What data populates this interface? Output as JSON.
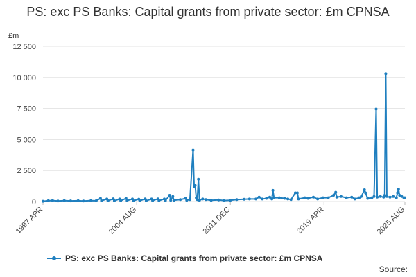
{
  "title": "PS: exc PS Banks: Capital grants from private sector: £m CPNSA",
  "unit_label": "£m",
  "source_label": "Source:",
  "chart_data": {
    "type": "line",
    "title": "PS: exc PS Banks: Capital grants from private sector: £m CPNSA",
    "ylabel": "£m",
    "ylim": [
      0,
      12500
    ],
    "yticks": [
      0,
      2500,
      5000,
      7500,
      10000,
      12500
    ],
    "ytick_labels": [
      "0",
      "2 500",
      "5 000",
      "7 500",
      "10 000",
      "12 500"
    ],
    "xticks": [
      "1997 APR",
      "2004 AUG",
      "2011 DEC",
      "2019 APR",
      "2025 AUG"
    ],
    "x_range": [
      "1997-04",
      "2025-08"
    ],
    "grid": "horizontal",
    "legend": "bottom",
    "series_color": "#1f7fbf",
    "series": [
      {
        "name": "PS: exc PS Banks: Capital grants from private sector: £m CPNSA",
        "points": [
          [
            "1997-04",
            20
          ],
          [
            "1997-09",
            60
          ],
          [
            "1998-01",
            80
          ],
          [
            "1998-06",
            40
          ],
          [
            "1998-12",
            70
          ],
          [
            "1999-06",
            50
          ],
          [
            "2000-01",
            60
          ],
          [
            "2000-06",
            40
          ],
          [
            "2001-01",
            70
          ],
          [
            "2001-06",
            60
          ],
          [
            "2001-10",
            250
          ],
          [
            "2001-11",
            60
          ],
          [
            "2002-04",
            200
          ],
          [
            "2002-05",
            60
          ],
          [
            "2002-10",
            220
          ],
          [
            "2002-11",
            60
          ],
          [
            "2003-04",
            200
          ],
          [
            "2003-05",
            60
          ],
          [
            "2003-10",
            250
          ],
          [
            "2003-11",
            70
          ],
          [
            "2004-04",
            200
          ],
          [
            "2004-05",
            60
          ],
          [
            "2004-10",
            190
          ],
          [
            "2004-11",
            60
          ],
          [
            "2005-04",
            210
          ],
          [
            "2005-05",
            60
          ],
          [
            "2005-10",
            200
          ],
          [
            "2005-11",
            70
          ],
          [
            "2006-04",
            210
          ],
          [
            "2006-05",
            70
          ],
          [
            "2006-10",
            200
          ],
          [
            "2006-11",
            80
          ],
          [
            "2007-03",
            500
          ],
          [
            "2007-04",
            100
          ],
          [
            "2007-06",
            400
          ],
          [
            "2007-07",
            100
          ],
          [
            "2008-01",
            150
          ],
          [
            "2008-06",
            250
          ],
          [
            "2008-07",
            100
          ],
          [
            "2008-10",
            150
          ],
          [
            "2009-01",
            4150
          ],
          [
            "2009-02",
            1200
          ],
          [
            "2009-03",
            1300
          ],
          [
            "2009-04",
            300
          ],
          [
            "2009-05",
            150
          ],
          [
            "2009-06",
            1800
          ],
          [
            "2009-07",
            100
          ],
          [
            "2009-10",
            200
          ],
          [
            "2010-01",
            150
          ],
          [
            "2010-06",
            100
          ],
          [
            "2011-01",
            120
          ],
          [
            "2011-06",
            80
          ],
          [
            "2011-12",
            100
          ],
          [
            "2012-06",
            150
          ],
          [
            "2013-01",
            180
          ],
          [
            "2013-06",
            200
          ],
          [
            "2013-12",
            200
          ],
          [
            "2014-03",
            350
          ],
          [
            "2014-06",
            200
          ],
          [
            "2014-10",
            250
          ],
          [
            "2015-01",
            350
          ],
          [
            "2015-03",
            200
          ],
          [
            "2015-04",
            900
          ],
          [
            "2015-05",
            300
          ],
          [
            "2015-10",
            300
          ],
          [
            "2016-03",
            250
          ],
          [
            "2016-06",
            200
          ],
          [
            "2016-09",
            150
          ],
          [
            "2017-01",
            700
          ],
          [
            "2017-03",
            700
          ],
          [
            "2017-04",
            200
          ],
          [
            "2017-10",
            300
          ],
          [
            "2018-01",
            250
          ],
          [
            "2018-06",
            350
          ],
          [
            "2018-10",
            200
          ],
          [
            "2019-03",
            300
          ],
          [
            "2019-08",
            300
          ],
          [
            "2020-01",
            500
          ],
          [
            "2020-03",
            750
          ],
          [
            "2020-04",
            350
          ],
          [
            "2020-08",
            400
          ],
          [
            "2021-01",
            300
          ],
          [
            "2021-06",
            350
          ],
          [
            "2021-09",
            200
          ],
          [
            "2022-01",
            300
          ],
          [
            "2022-03",
            400
          ],
          [
            "2022-06",
            950
          ],
          [
            "2022-07",
            700
          ],
          [
            "2022-09",
            250
          ],
          [
            "2023-01",
            300
          ],
          [
            "2023-03",
            400
          ],
          [
            "2023-05",
            7450
          ],
          [
            "2023-06",
            350
          ],
          [
            "2023-09",
            400
          ],
          [
            "2023-12",
            350
          ],
          [
            "2024-01",
            500
          ],
          [
            "2024-02",
            10300
          ],
          [
            "2024-03",
            400
          ],
          [
            "2024-06",
            350
          ],
          [
            "2024-09",
            400
          ],
          [
            "2024-12",
            300
          ],
          [
            "2025-01",
            700
          ],
          [
            "2025-02",
            1000
          ],
          [
            "2025-03",
            500
          ],
          [
            "2025-05",
            400
          ],
          [
            "2025-07",
            300
          ],
          [
            "2025-08",
            300
          ]
        ]
      }
    ]
  }
}
